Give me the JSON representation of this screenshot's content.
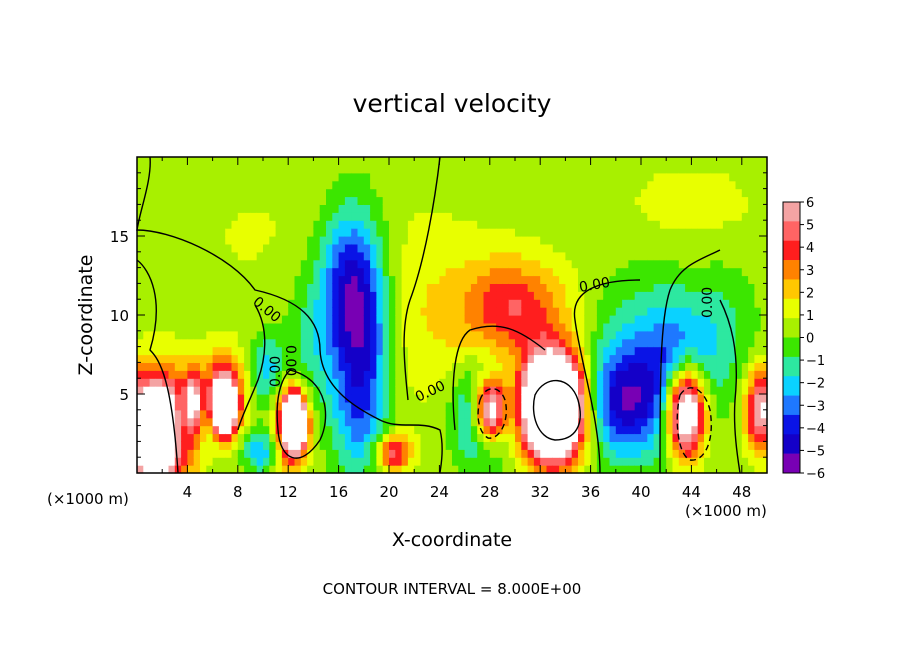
{
  "chart_data": {
    "type": "heatmap",
    "title": "vertical velocity",
    "xlabel": "X-coordinate",
    "ylabel": "Z-coordinate",
    "x_unit_left": "(×1000 m)",
    "x_unit_right": "(×1000 m)",
    "xlim": [
      0,
      50
    ],
    "ylim": [
      0,
      20
    ],
    "xticks": [
      "4",
      "8",
      "12",
      "16",
      "20",
      "24",
      "28",
      "32",
      "36",
      "40",
      "44",
      "48"
    ],
    "xtick_values": [
      4,
      8,
      12,
      16,
      20,
      24,
      28,
      32,
      36,
      40,
      44,
      48
    ],
    "yticks": [
      "5",
      "10",
      "15"
    ],
    "ytick_values": [
      5,
      10,
      15
    ],
    "footer": "CONTOUR INTERVAL = 8.000E+00",
    "colorbar": {
      "labels": [
        "6",
        "5",
        "4",
        "3",
        "2",
        "1",
        "0",
        "−1",
        "−2",
        "−3",
        "−4",
        "−5",
        "−6"
      ],
      "values": [
        6,
        5,
        4,
        3,
        2,
        1,
        0,
        -1,
        -2,
        -3,
        -4,
        -5,
        -6
      ],
      "colors": [
        "#f4a3a3",
        "#ff6464",
        "#ff1e1e",
        "#ff8200",
        "#ffc800",
        "#e8ff00",
        "#a8f000",
        "#3ce600",
        "#2de8a0",
        "#0ad2ff",
        "#1e78ff",
        "#0a14e6",
        "#1400c8",
        "#7800b4"
      ],
      "min": -6,
      "max": 6
    },
    "contour_labels": [
      "0.00",
      "0.00",
      "0.00",
      "0.00",
      "0.00",
      "0.00"
    ],
    "background_value": 0.4,
    "features": [
      {
        "x": 1.5,
        "z": 3.0,
        "w": 2.6,
        "h": 3.2,
        "v": 14
      },
      {
        "x": 1.5,
        "z": 4.5,
        "w": 1.6,
        "h": 2.4,
        "v": -2.5
      },
      {
        "x": 3.6,
        "z": 3.5,
        "w": 0.8,
        "h": 2.2,
        "v": -5
      },
      {
        "x": 4.3,
        "z": 4.5,
        "w": 0.9,
        "h": 2.0,
        "v": 5
      },
      {
        "x": 5.6,
        "z": 4.0,
        "w": 1.0,
        "h": 2.2,
        "v": -3
      },
      {
        "x": 6.7,
        "z": 5.0,
        "w": 1.6,
        "h": 2.4,
        "v": 6
      },
      {
        "x": 6.9,
        "z": 4.0,
        "w": 1.0,
        "h": 1.5,
        "v": 8
      },
      {
        "x": 9.8,
        "z": 1.5,
        "w": 1.3,
        "h": 1.4,
        "v": -3
      },
      {
        "x": 10.3,
        "z": 6.5,
        "w": 1.2,
        "h": 2.2,
        "v": -2.5
      },
      {
        "x": 12.3,
        "z": 3.0,
        "w": 1.4,
        "h": 2.4,
        "v": 6
      },
      {
        "x": 12.5,
        "z": 3.2,
        "w": 0.8,
        "h": 1.6,
        "v": 10
      },
      {
        "x": 14.0,
        "z": 8.0,
        "w": 2.6,
        "h": 5.0,
        "v": -1.5
      },
      {
        "x": 17.0,
        "z": 12.0,
        "w": 2.5,
        "h": 5.0,
        "v": -4.8
      },
      {
        "x": 18.0,
        "z": 7.0,
        "w": 2.2,
        "h": 5.5,
        "v": -3.5
      },
      {
        "x": 17.5,
        "z": 3.0,
        "w": 2.0,
        "h": 3.5,
        "v": -1.5
      },
      {
        "x": 20.3,
        "z": 1.3,
        "w": 1.4,
        "h": 1.2,
        "v": 4.5
      },
      {
        "x": 23.5,
        "z": 10.0,
        "w": 6.0,
        "h": 6.0,
        "v": 1.2
      },
      {
        "x": 30.0,
        "z": 10.5,
        "w": 4.0,
        "h": 3.0,
        "v": 3.5
      },
      {
        "x": 27.5,
        "z": 3.8,
        "w": 2.2,
        "h": 3.0,
        "v": -4.8
      },
      {
        "x": 28.0,
        "z": 4.0,
        "w": 1.3,
        "h": 2.0,
        "v": 10
      },
      {
        "x": 33.0,
        "z": 4.2,
        "w": 2.8,
        "h": 3.6,
        "v": 6
      },
      {
        "x": 33.0,
        "z": 4.3,
        "w": 2.0,
        "h": 2.8,
        "v": 12
      },
      {
        "x": 38.5,
        "z": 4.5,
        "w": 2.8,
        "h": 3.5,
        "v": -5.2
      },
      {
        "x": 40.0,
        "z": 9.0,
        "w": 3.5,
        "h": 4.0,
        "v": -1.5
      },
      {
        "x": 43.0,
        "z": 5.5,
        "w": 2.5,
        "h": 4.5,
        "v": -5
      },
      {
        "x": 43.5,
        "z": 4.0,
        "w": 1.6,
        "h": 3.0,
        "v": 12
      },
      {
        "x": 46.5,
        "z": 9.0,
        "w": 2.6,
        "h": 4.0,
        "v": -1.5
      },
      {
        "x": 49.5,
        "z": 4.0,
        "w": 1.2,
        "h": 2.5,
        "v": 6
      },
      {
        "x": 10.0,
        "z": 15.0,
        "w": 10.0,
        "h": 6.0,
        "v": 0.5
      },
      {
        "x": 44.0,
        "z": 17.0,
        "w": 6.0,
        "h": 3.0,
        "v": 0.8
      }
    ]
  }
}
